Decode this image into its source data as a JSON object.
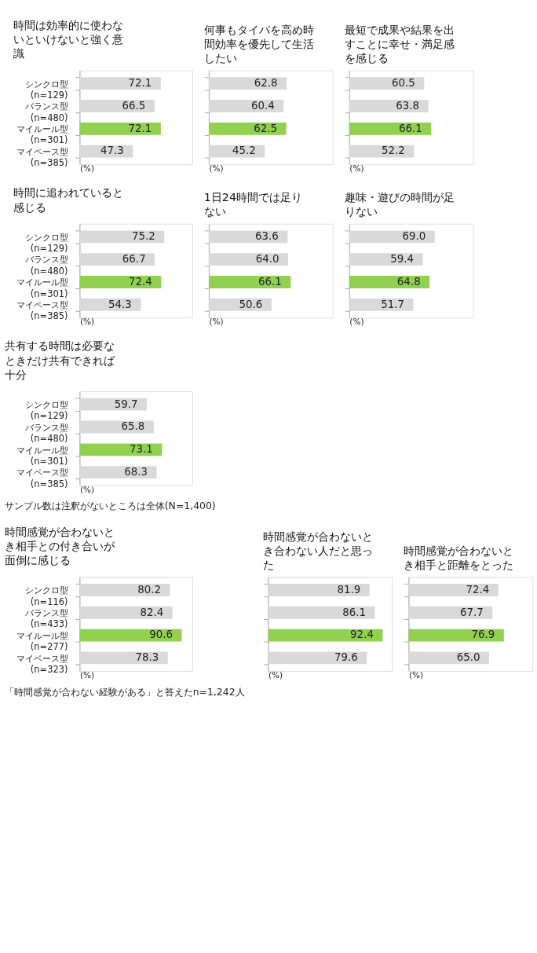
{
  "chart_data": [
    {
      "type": "bar",
      "orientation": "horizontal",
      "title": "時間は効率的に使わないといけないと強く意識",
      "categories": [
        "シンクロ型\n(n=129)",
        "バランス型\n(n=480)",
        "マイルール型\n(n=301)",
        "マイペース型\n(n=385)"
      ],
      "values": [
        72.1,
        66.5,
        72.1,
        47.3
      ],
      "value_labels": [
        "72.1",
        "66.5",
        "72.1",
        "47.3"
      ],
      "colors": [
        "#d9d9d9",
        "#d9d9d9",
        "#92d050",
        "#d9d9d9"
      ],
      "xlim": [
        0,
        100
      ],
      "xlabel": "(%)",
      "tick_labels": "y"
    },
    {
      "type": "bar",
      "orientation": "horizontal",
      "title": "何事もタイパを高め時間効率を優先して生活したい",
      "categories": [
        "シンクロ型\n(n=129)",
        "バランス型\n(n=480)",
        "マイルール型\n(n=301)",
        "マイペース型\n(n=385)"
      ],
      "values": [
        62.8,
        60.4,
        62.5,
        45.2
      ],
      "value_labels": [
        "62.8",
        "60.4",
        "62.5",
        "45.2"
      ],
      "colors": [
        "#d9d9d9",
        "#d9d9d9",
        "#92d050",
        "#d9d9d9"
      ],
      "xlim": [
        0,
        100
      ],
      "xlabel": "(%)",
      "tick_labels": false
    },
    {
      "type": "bar",
      "orientation": "horizontal",
      "title": "最短で成果や結果を出すことに幸せ・満足感を感じる",
      "categories": [
        "シンクロ型\n(n=129)",
        "バランス型\n(n=480)",
        "マイルール型\n(n=301)",
        "マイペース型\n(n=385)"
      ],
      "values": [
        60.5,
        63.8,
        66.1,
        52.2
      ],
      "value_labels": [
        "60.5",
        "63.8",
        "66.1",
        "52.2"
      ],
      "colors": [
        "#d9d9d9",
        "#d9d9d9",
        "#92d050",
        "#d9d9d9"
      ],
      "xlim": [
        0,
        100
      ],
      "xlabel": "(%)",
      "tick_labels": false
    },
    {
      "type": "bar",
      "orientation": "horizontal",
      "title": "時間に追われていると感じる",
      "categories": [
        "シンクロ型\n(n=129)",
        "バランス型\n(n=480)",
        "マイルール型\n(n=301)",
        "マイペース型\n(n=385)"
      ],
      "values": [
        75.2,
        66.7,
        72.4,
        54.3
      ],
      "value_labels": [
        "75.2",
        "66.7",
        "72.4",
        "54.3"
      ],
      "colors": [
        "#d9d9d9",
        "#d9d9d9",
        "#92d050",
        "#d9d9d9"
      ],
      "xlim": [
        0,
        100
      ],
      "xlabel": "(%)",
      "tick_labels": "y"
    },
    {
      "type": "bar",
      "orientation": "horizontal",
      "title": "1日24時間では足りない",
      "categories": [
        "シンクロ型\n(n=129)",
        "バランス型\n(n=480)",
        "マイルール型\n(n=301)",
        "マイペース型\n(n=385)"
      ],
      "values": [
        63.6,
        64.0,
        66.1,
        50.6
      ],
      "value_labels": [
        "63.6",
        "64.0",
        "66.1",
        "50.6"
      ],
      "colors": [
        "#d9d9d9",
        "#d9d9d9",
        "#92d050",
        "#d9d9d9"
      ],
      "xlim": [
        0,
        100
      ],
      "xlabel": "(%)",
      "tick_labels": false
    },
    {
      "type": "bar",
      "orientation": "horizontal",
      "title": "趣味・遊びの時間が足りない",
      "categories": [
        "シンクロ型\n(n=129)",
        "バランス型\n(n=480)",
        "マイルール型\n(n=301)",
        "マイペース型\n(n=385)"
      ],
      "values": [
        69.0,
        59.4,
        64.8,
        51.7
      ],
      "value_labels": [
        "69.0",
        "59.4",
        "64.8",
        "51.7"
      ],
      "colors": [
        "#d9d9d9",
        "#d9d9d9",
        "#92d050",
        "#d9d9d9"
      ],
      "xlim": [
        0,
        100
      ],
      "xlabel": "(%)",
      "tick_labels": false
    },
    {
      "type": "bar",
      "orientation": "horizontal",
      "title": "共有する時間は必要なときだけ共有できれば十分",
      "categories": [
        "シンクロ型\n(n=129)",
        "バランス型\n(n=480)",
        "マイルール型\n(n=301)",
        "マイペース型\n(n=385)"
      ],
      "values": [
        59.7,
        65.8,
        73.1,
        68.3
      ],
      "value_labels": [
        "59.7",
        "65.8",
        "73.1",
        "68.3"
      ],
      "colors": [
        "#d9d9d9",
        "#d9d9d9",
        "#92d050",
        "#d9d9d9"
      ],
      "xlim": [
        0,
        100
      ],
      "xlabel": "(%)",
      "tick_labels": "y",
      "annotations": [
        "サンプル数は注釈がないところは全体(N=1,400)"
      ]
    },
    {
      "type": "bar",
      "orientation": "horizontal",
      "title": "時間感覚が合わないとき相手との付き合いが面倒に感じる",
      "categories": [
        "シンクロ型\n(n=116)",
        "バランス型\n(n=433)",
        "マイルール型\n(n=277)",
        "マイベース型\n(n=323)"
      ],
      "values": [
        80.2,
        82.4,
        90.6,
        78.3
      ],
      "value_labels": [
        "80.2",
        "82.4",
        "90.6",
        "78.3"
      ],
      "colors": [
        "#d9d9d9",
        "#d9d9d9",
        "#92d050",
        "#d9d9d9"
      ],
      "xlim": [
        0,
        100
      ],
      "xlabel": "(%)",
      "tick_labels": "y",
      "annotations": [
        "「時間感覚が合わない経験がある」と答えたn=1,242人"
      ]
    },
    {
      "type": "bar",
      "orientation": "horizontal",
      "title": "時間感覚が合わないとき合わない人だと思った",
      "categories": [
        "シンクロ型\n(n=116)",
        "バランス型\n(n=433)",
        "マイルール型\n(n=277)",
        "マイベース型\n(n=323)"
      ],
      "values": [
        81.9,
        86.1,
        92.4,
        79.6
      ],
      "value_labels": [
        "81.9",
        "86.1",
        "92.4",
        "79.6"
      ],
      "colors": [
        "#d9d9d9",
        "#d9d9d9",
        "#92d050",
        "#d9d9d9"
      ],
      "xlim": [
        0,
        100
      ],
      "xlabel": "(%)",
      "tick_labels": false
    },
    {
      "type": "bar",
      "orientation": "horizontal",
      "title": "時間感覚が合わないとき相手と距離をとった",
      "categories": [
        "シンクロ型\n(n=116)",
        "バランス型\n(n=433)",
        "マイルール型\n(n=277)",
        "マイベース型\n(n=323)"
      ],
      "values": [
        72.4,
        67.7,
        76.9,
        65.0
      ],
      "value_labels": [
        "72.4",
        "67.7",
        "76.9",
        "65.0"
      ],
      "colors": [
        "#d9d9d9",
        "#d9d9d9",
        "#92d050",
        "#d9d9d9"
      ],
      "xlim": [
        0,
        100
      ],
      "xlabel": "(%)",
      "tick_labels": false
    }
  ]
}
